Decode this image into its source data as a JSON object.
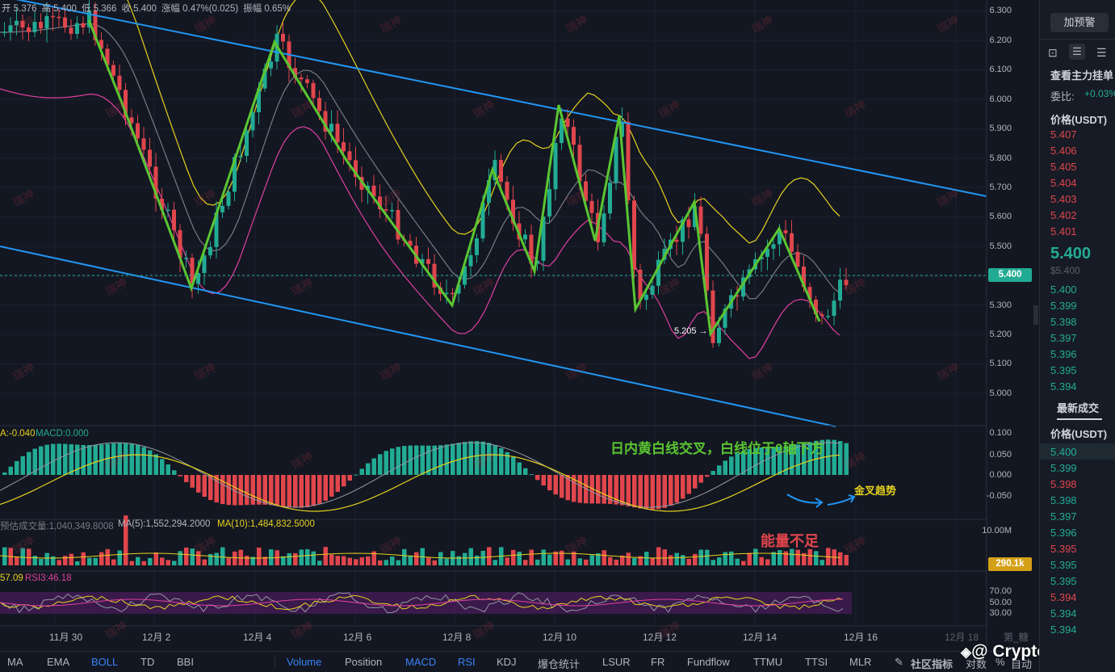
{
  "ohlc": {
    "open": "开 5.376",
    "high": "高 5.400",
    "low": "低 5.366",
    "close": "收 5.400",
    "change": "涨幅 0.47%(0.025)",
    "amplitude": "振幅 0.65%"
  },
  "price_axis": [
    "6.300",
    "6.200",
    "6.100",
    "6.000",
    "5.900",
    "5.800",
    "5.700",
    "5.600",
    "5.500",
    "5.400",
    "5.300",
    "5.200",
    "5.100",
    "5.000"
  ],
  "current_price_tag": "5.400",
  "low_marker": "5.205 →",
  "macd": {
    "label_a": "A:-0.040",
    "label_macd": "MACD:0.000",
    "axis": [
      "0.100",
      "0.050",
      "0.000",
      "-0.050"
    ]
  },
  "volume": {
    "label": "预估成交量:1,040,349.8008",
    "ma5": "MA(5):1,552,294.2000",
    "ma10": "MA(10):1,484,832.5000",
    "axis_top": "10.00M",
    "tag": "290.1k"
  },
  "rsi": {
    "label_a": "57.09",
    "label_rsi3": "RSI3:46.18",
    "axis": [
      "70.00",
      "50.00",
      "30.00"
    ]
  },
  "annotations": {
    "cross": "日内黄白线交叉，白线位于0轴下方",
    "golden": "金叉趋势",
    "energy": "能量不足"
  },
  "watermark_text": "瑞神",
  "x_axis": [
    "11月 30",
    "12月 2",
    "12月 4",
    "12月 6",
    "12月 8",
    "12月 10",
    "12月 12",
    "12月 14",
    "12月 16",
    "12月 18",
    "第_糖"
  ],
  "bottom_tabs": [
    "MA",
    "EMA",
    "BOLL",
    "TD",
    "BBI",
    "Volume",
    "Position",
    "MACD",
    "RSI",
    "KDJ",
    "爆仓统计",
    "LSUR",
    "FR",
    "Fundflow",
    "TTMU",
    "TTSI",
    "MLR"
  ],
  "bottom_right": {
    "community": "社区指标",
    "log": "对数",
    "pct": "%",
    "auto": "自动"
  },
  "brand": "@ Crypto瑞神",
  "right_panel": {
    "alert_btn": "加预警",
    "orderbook_title": "查看主力挂单",
    "ratio_label": "委比:",
    "ratio_value": "+0.03%",
    "price_header": "价格(USDT)",
    "asks": [
      "5.407",
      "5.406",
      "5.405",
      "5.404",
      "5.403",
      "5.402",
      "5.401"
    ],
    "last_price": "5.400",
    "last_price_usd": "$5.400",
    "bids": [
      "5.400",
      "5.399",
      "5.398",
      "5.397",
      "5.396",
      "5.395",
      "5.394"
    ],
    "trades_title": "最新成交",
    "trades_header": "价格(USDT)",
    "trades": [
      "5.400",
      "5.399",
      "5.398",
      "5.398",
      "5.397",
      "5.396",
      "5.395",
      "5.395",
      "5.395",
      "5.394",
      "5.394",
      "5.394"
    ]
  },
  "colors": {
    "up": "#22ab94",
    "down": "#e0464c",
    "trend": "#2196f3",
    "zigzag": "#5ac531",
    "boll_mid": "#787b86",
    "boll_up": "#e6d21e",
    "boll_low": "#e040a0"
  }
}
